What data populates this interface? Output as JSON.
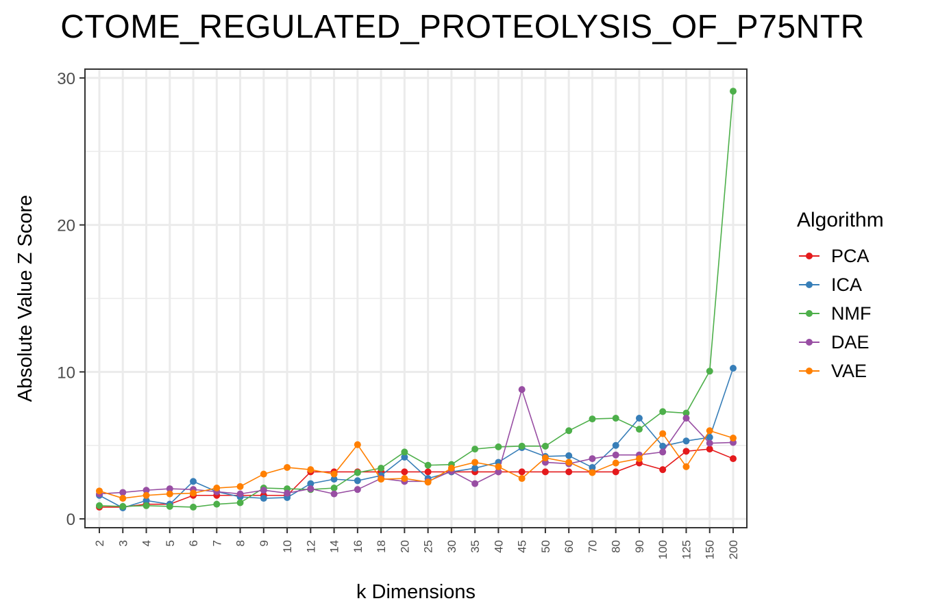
{
  "chart_data": {
    "type": "line",
    "title": "CTOME_REGULATED_PROTEOLYSIS_OF_P75NTR",
    "xlabel": "k Dimensions",
    "ylabel": "Absolute Value Z Score",
    "ylim": [
      -0.6,
      30.6
    ],
    "yticks": [
      0,
      10,
      20,
      30
    ],
    "grid": true,
    "legend_title": "Algorithm",
    "legend_position": "right",
    "categories": [
      "2",
      "3",
      "4",
      "5",
      "6",
      "7",
      "8",
      "9",
      "10",
      "12",
      "14",
      "16",
      "18",
      "20",
      "25",
      "30",
      "35",
      "40",
      "45",
      "50",
      "60",
      "70",
      "80",
      "90",
      "100",
      "125",
      "150",
      "200"
    ],
    "series": [
      {
        "name": "PCA",
        "color": "#e41a1c",
        "values": [
          0.8,
          0.8,
          1.0,
          1.0,
          1.6,
          1.6,
          1.6,
          1.6,
          1.6,
          3.2,
          3.2,
          3.2,
          3.2,
          3.2,
          3.2,
          3.2,
          3.2,
          3.2,
          3.2,
          3.2,
          3.2,
          3.2,
          3.2,
          3.8,
          3.35,
          4.6,
          4.75,
          4.1
        ]
      },
      {
        "name": "ICA",
        "color": "#377eb8",
        "values": [
          1.6,
          0.75,
          1.25,
          1.0,
          2.55,
          1.85,
          1.5,
          1.4,
          1.45,
          2.4,
          2.7,
          2.6,
          2.95,
          4.2,
          2.75,
          3.2,
          3.45,
          3.85,
          4.85,
          4.25,
          4.3,
          3.5,
          5.0,
          6.85,
          4.95,
          5.3,
          5.55,
          10.25
        ]
      },
      {
        "name": "NMF",
        "color": "#4daf4a",
        "values": [
          0.9,
          0.85,
          0.9,
          0.85,
          0.8,
          1.0,
          1.1,
          2.1,
          2.05,
          2.0,
          2.1,
          3.15,
          3.45,
          4.55,
          3.65,
          3.7,
          4.75,
          4.9,
          4.95,
          4.95,
          6.0,
          6.8,
          6.85,
          6.1,
          7.3,
          7.2,
          10.05,
          29.1
        ]
      },
      {
        "name": "DAE",
        "color": "#984ea3",
        "values": [
          1.7,
          1.8,
          1.95,
          2.05,
          2.0,
          1.85,
          1.7,
          1.95,
          1.75,
          2.05,
          1.7,
          2.0,
          2.75,
          2.55,
          2.55,
          3.25,
          2.4,
          3.2,
          8.8,
          3.85,
          3.75,
          4.1,
          4.35,
          4.35,
          4.55,
          6.85,
          5.15,
          5.2
        ]
      },
      {
        "name": "VAE",
        "color": "#ff7f00",
        "values": [
          1.9,
          1.4,
          1.6,
          1.7,
          1.75,
          2.1,
          2.2,
          3.05,
          3.5,
          3.35,
          3.05,
          5.05,
          2.7,
          2.75,
          2.5,
          3.45,
          3.85,
          3.55,
          2.75,
          4.15,
          3.85,
          3.15,
          3.8,
          4.1,
          5.8,
          3.55,
          6.0,
          5.5
        ]
      }
    ]
  }
}
